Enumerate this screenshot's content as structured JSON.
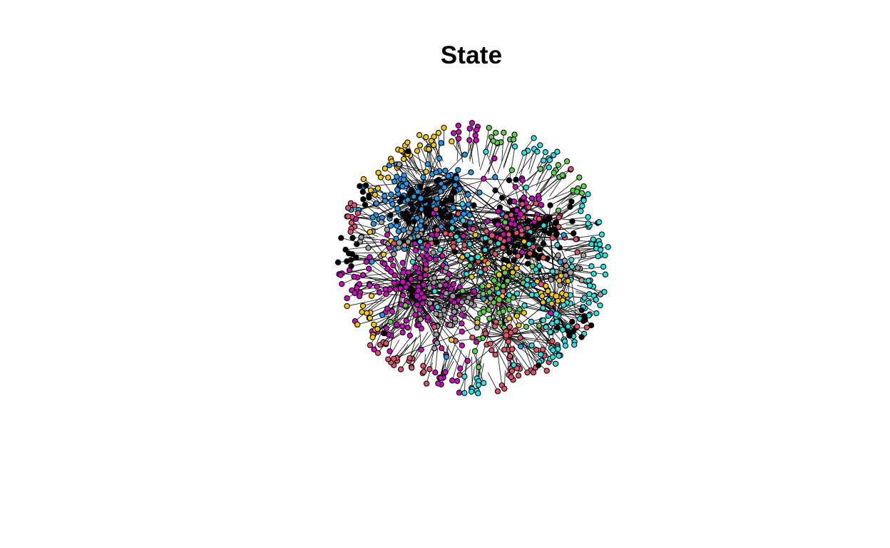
{
  "title": "State",
  "network": {
    "node_fill_colors": {
      "black": "#000000",
      "rose": "#DF536B",
      "green": "#61D04F",
      "blue": "#2297E6",
      "cyan": "#28E2E5",
      "magenta": "#CD0BBC",
      "yellow": "#F5C710",
      "gray": "#9E9E9E"
    },
    "node_outline_color": "#000000",
    "edge_color": "#000000"
  }
}
